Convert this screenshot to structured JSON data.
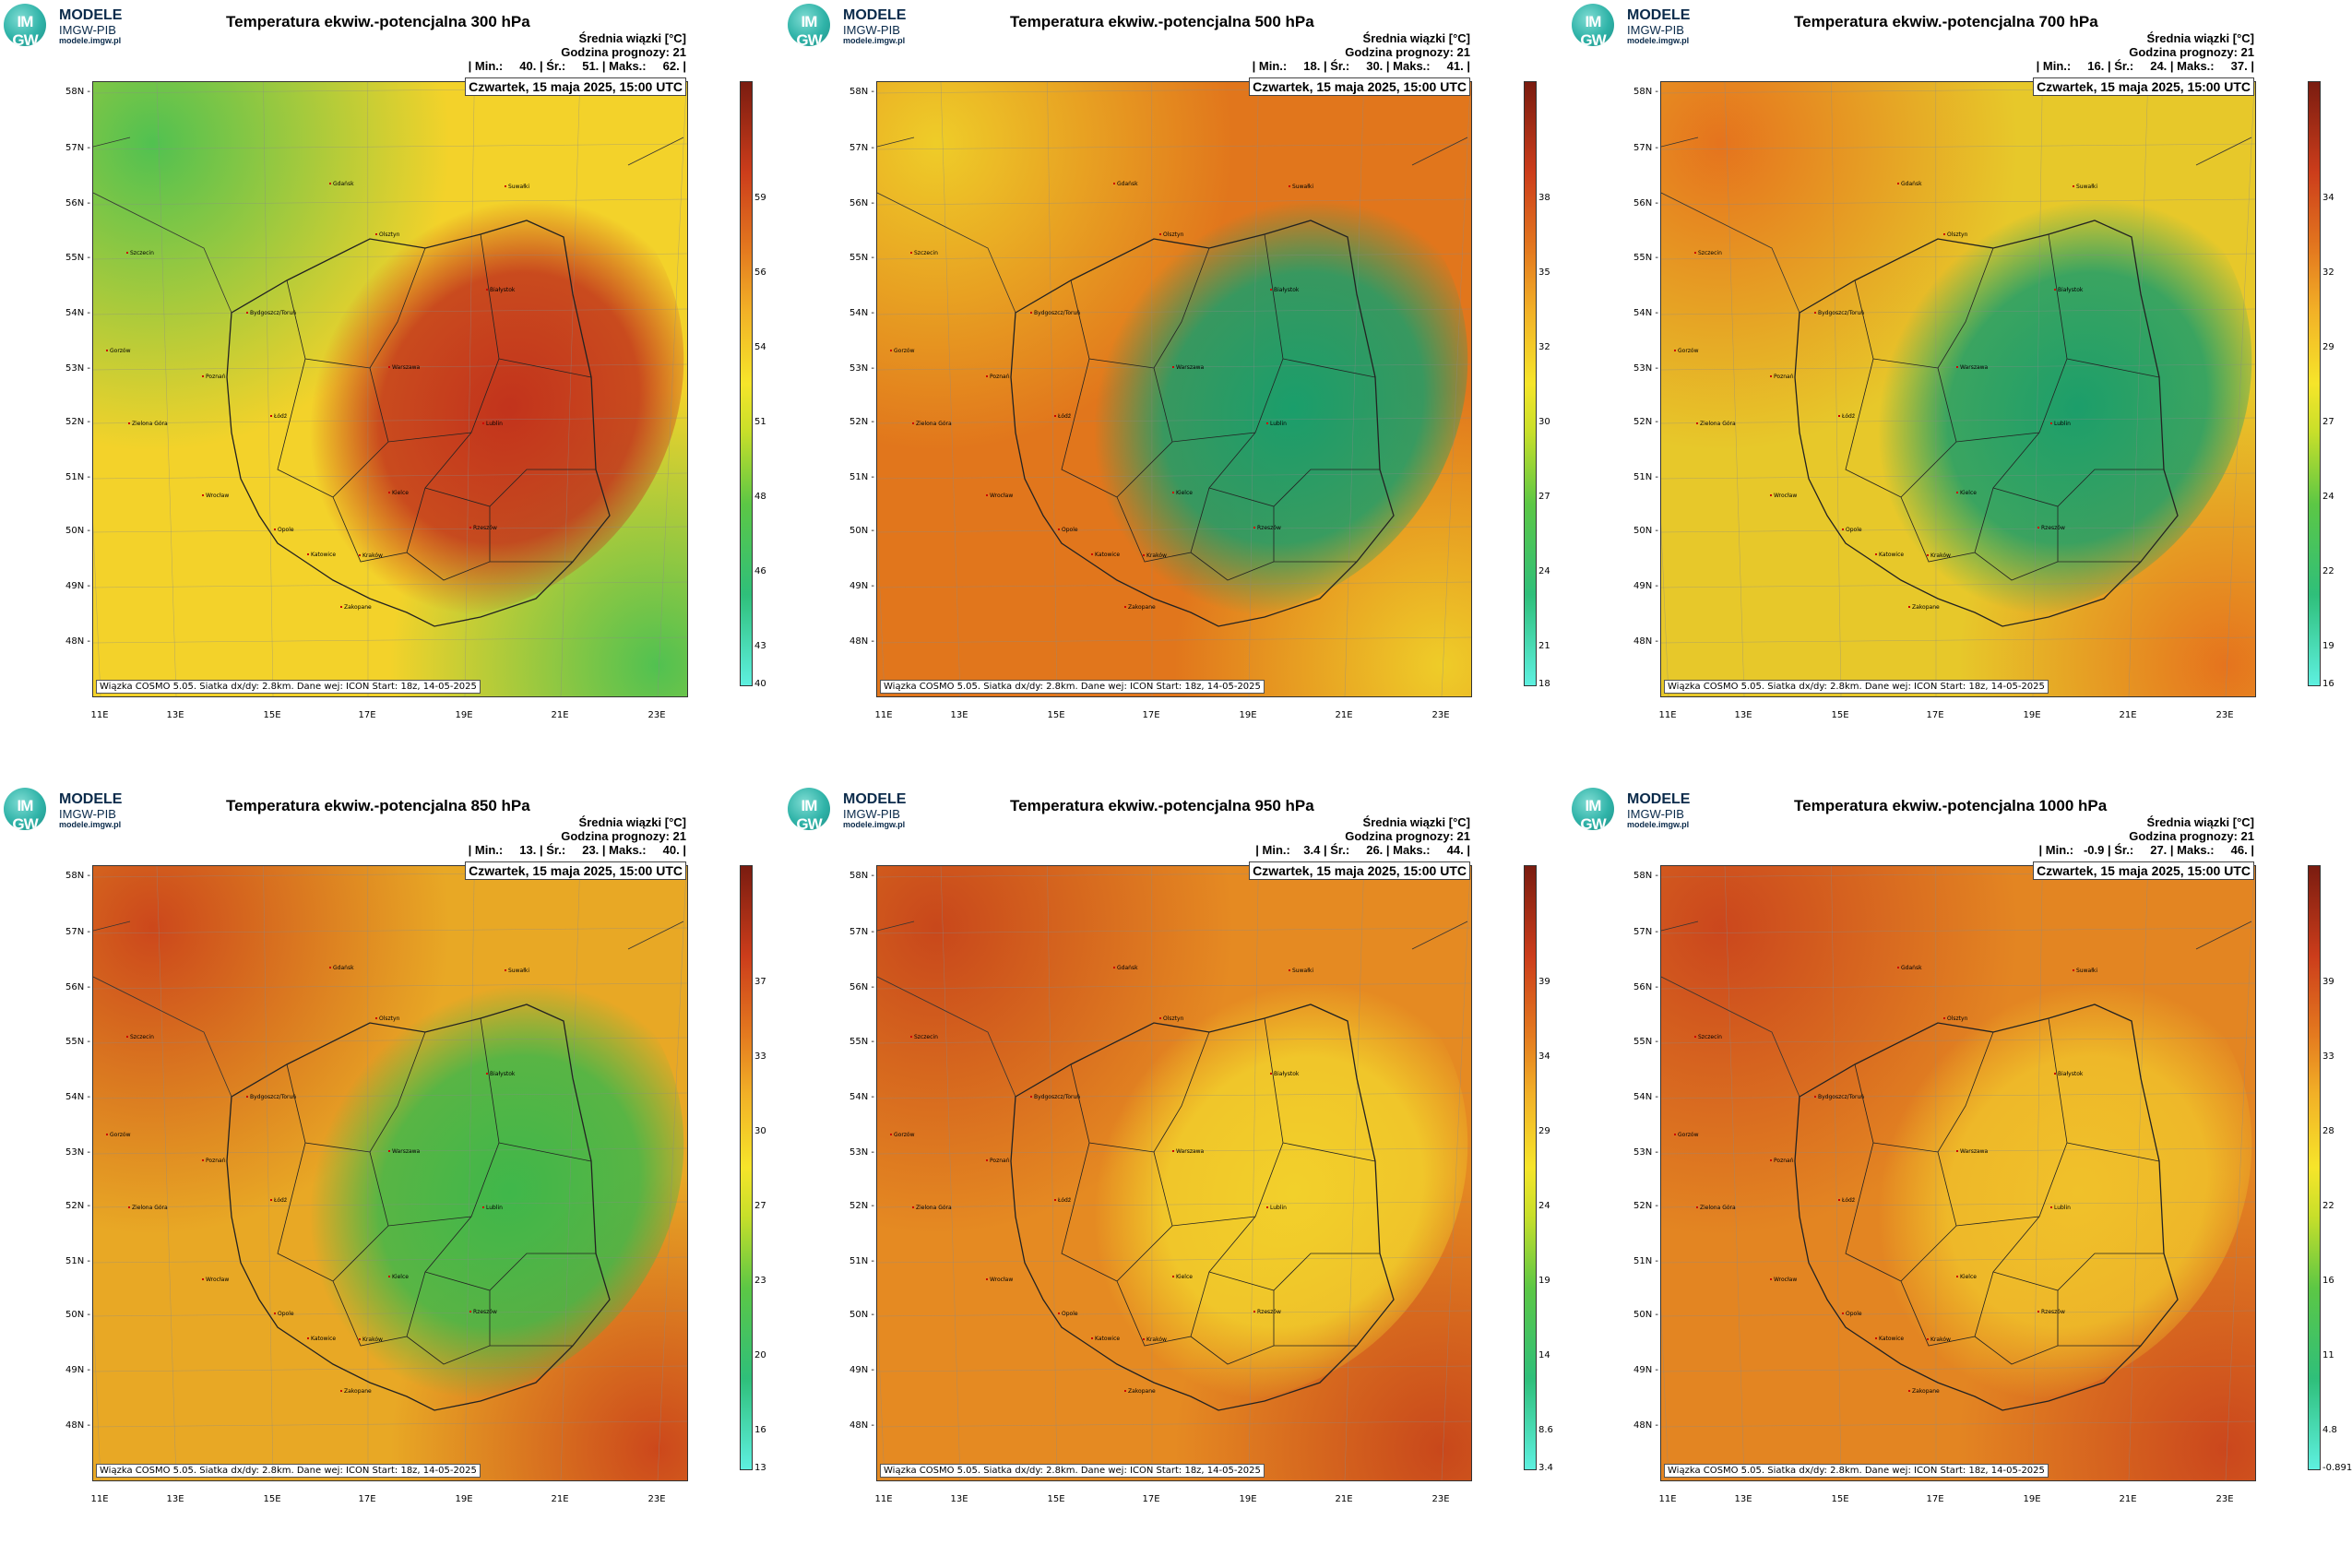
{
  "logo": {
    "circle_text": "IM GW",
    "name": "MODELE",
    "sub": "IMGW-PIB",
    "url": "modele.imgw.pl"
  },
  "meta_line1": "Średnia wiązki [°C]",
  "meta_line2": "Godzina prognozy: 21",
  "date": "Czwartek, 15 maja 2025, 15:00 UTC",
  "footer": "Wiązka COSMO 5.05. Siatka dx/dy: 2.8km. Dane wej: ICON Start: 18z, 14-05-2025",
  "lat_labels": [
    "58N",
    "57N",
    "56N",
    "55N",
    "54N",
    "53N",
    "52N",
    "51N",
    "50N",
    "49N",
    "48N"
  ],
  "lon_labels": [
    "11E",
    "13E",
    "15E",
    "17E",
    "19E",
    "21E",
    "23E"
  ],
  "cities": [
    "Gdańsk",
    "Olsztyn",
    "Szczecin",
    "Bydgoszcz/Toruń",
    "Białystok",
    "Gorzów",
    "Poznań",
    "Warszawa",
    "Zielona Góra",
    "Łódź",
    "Lublin",
    "Wrocław",
    "Kielce",
    "Opole",
    "Katowice",
    "Kraków",
    "Rzeszów",
    "Zakopane",
    "Suwałki"
  ],
  "panels": [
    {
      "title": "Temperatura ekwiw.-potencjalna 300 hPa",
      "stats": "| Min.:     40. | Śr.:     51. | Maks.:     62. |",
      "cbar": [
        "59",
        "56",
        "54",
        "51",
        "48",
        "46",
        "43",
        "40"
      ],
      "colors": {
        "bg": "#f3d22a",
        "core": "#c2331c",
        "accent": "#3fbf55"
      }
    },
    {
      "title": "Temperatura ekwiw.-potencjalna 500 hPa",
      "stats": "| Min.:     18. | Śr.:     30. | Maks.:     41. |",
      "cbar": [
        "38",
        "35",
        "32",
        "30",
        "27",
        "24",
        "21",
        "18"
      ],
      "colors": {
        "bg": "#e1761c",
        "core": "#1a9e6b",
        "accent": "#f0d62a"
      }
    },
    {
      "title": "Temperatura ekwiw.-potencjalna 700 hPa",
      "stats": "| Min.:     16. | Śr.:     24. | Maks.:     37. |",
      "cbar": [
        "34",
        "32",
        "29",
        "27",
        "24",
        "22",
        "19",
        "16"
      ],
      "colors": {
        "bg": "#e7c82a",
        "core": "#1c9e6a",
        "accent": "#e56a1c"
      }
    },
    {
      "title": "Temperatura ekwiw.-potencjalna 850 hPa",
      "stats": "| Min.:     13. | Śr.:     23. | Maks.:     40. |",
      "cbar": [
        "37",
        "33",
        "30",
        "27",
        "23",
        "20",
        "16",
        "13"
      ],
      "colors": {
        "bg": "#e8a825",
        "core": "#3fb74a",
        "accent": "#c93d1a"
      }
    },
    {
      "title": "Temperatura ekwiw.-potencjalna 950 hPa",
      "stats": "| Min.:    3.4 | Śr.:     26. | Maks.:     44. |",
      "cbar": [
        "39",
        "34",
        "29",
        "24",
        "19",
        "14",
        "8.6",
        "3.4"
      ],
      "colors": {
        "bg": "#e58a22",
        "core": "#f2d02b",
        "accent": "#c5401a"
      }
    },
    {
      "title": "Temperatura ekwiw.-potencjalna 1000 hPa",
      "stats": "| Min.:   -0.9 | Śr.:     27. | Maks.:     46. |",
      "cbar": [
        "39",
        "33",
        "28",
        "22",
        "16",
        "11",
        "4.8",
        "-0.891"
      ],
      "colors": {
        "bg": "#e38522",
        "core": "#f0c12a",
        "accent": "#c8401c"
      }
    }
  ]
}
